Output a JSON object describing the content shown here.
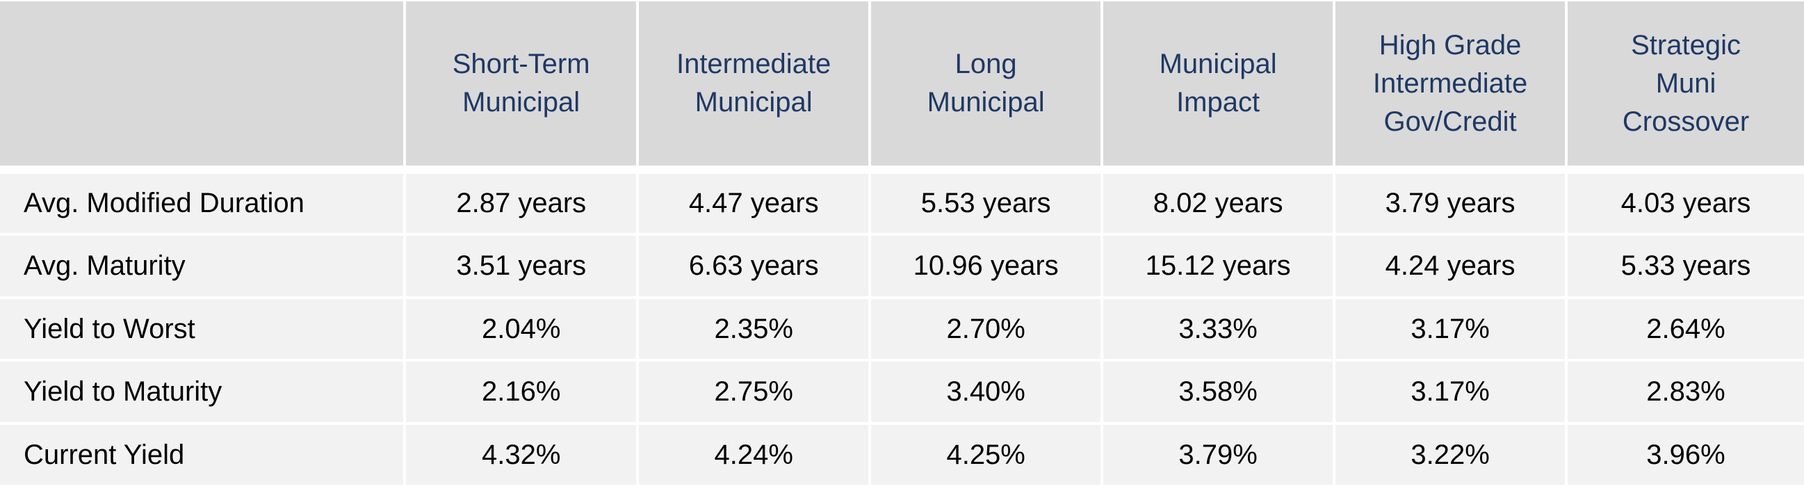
{
  "columns": [
    "",
    "Short-Term\nMunicipal",
    "Intermediate\nMunicipal",
    "Long\nMunicipal",
    "Municipal\nImpact",
    "High Grade\nIntermediate\nGov/Credit",
    "Strategic\nMuni\nCrossover"
  ],
  "rows": [
    {
      "label": "Avg. Modified Duration",
      "values": [
        "2.87 years",
        "4.47 years",
        "5.53 years",
        "8.02 years",
        "3.79 years",
        "4.03 years"
      ]
    },
    {
      "label": "Avg. Maturity",
      "values": [
        "3.51 years",
        "6.63 years",
        "10.96 years",
        "15.12 years",
        "4.24 years",
        "5.33 years"
      ]
    },
    {
      "label": "Yield to Worst",
      "values": [
        "2.04%",
        "2.35%",
        "2.70%",
        "3.33%",
        "3.17%",
        "2.64%"
      ]
    },
    {
      "label": "Yield to Maturity",
      "values": [
        "2.16%",
        "2.75%",
        "3.40%",
        "3.58%",
        "3.17%",
        "2.83%"
      ]
    },
    {
      "label": "Current Yield",
      "values": [
        "4.32%",
        "4.24%",
        "4.25%",
        "3.79%",
        "3.22%",
        "3.96%"
      ]
    }
  ],
  "colors": {
    "header_background": "#d9d9d9",
    "header_text": "#1f3864",
    "body_background": "#f2f2f2",
    "body_text": "#000000",
    "grid_lines": "#ffffff"
  }
}
